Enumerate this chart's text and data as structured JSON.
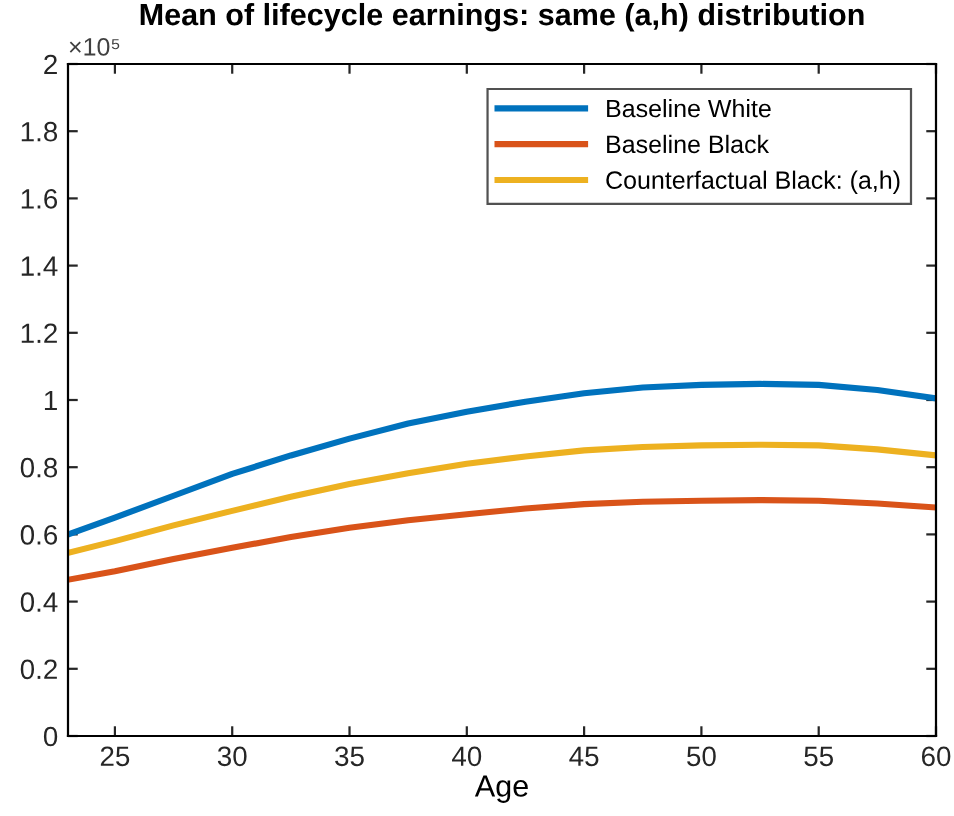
{
  "chart_data": {
    "type": "line",
    "title": "Mean of lifecycle earnings: same (a,h) distribution",
    "xlabel": "Age",
    "annotations": [
      "×10⁵"
    ],
    "x": [
      23,
      25,
      27.5,
      30,
      32.5,
      35,
      37.5,
      40,
      42.5,
      45,
      47.5,
      50,
      52.5,
      55,
      57.5,
      60
    ],
    "series": [
      {
        "name": "Baseline White",
        "color": "#0072bd",
        "values": [
          0.6,
          0.65,
          0.715,
          0.78,
          0.835,
          0.885,
          0.93,
          0.965,
          0.995,
          1.02,
          1.037,
          1.045,
          1.048,
          1.045,
          1.03,
          1.005
        ]
      },
      {
        "name": "Baseline Black",
        "color": "#d95319",
        "values": [
          0.465,
          0.49,
          0.527,
          0.56,
          0.592,
          0.62,
          0.642,
          0.66,
          0.677,
          0.69,
          0.697,
          0.7,
          0.702,
          0.7,
          0.692,
          0.68
        ]
      },
      {
        "name": "Counterfactual Black: (a,h)",
        "color": "#edb120",
        "values": [
          0.545,
          0.58,
          0.627,
          0.67,
          0.712,
          0.75,
          0.782,
          0.81,
          0.832,
          0.85,
          0.86,
          0.865,
          0.867,
          0.865,
          0.853,
          0.835
        ]
      }
    ],
    "xlim": [
      23,
      60
    ],
    "xticks": [
      25,
      30,
      35,
      40,
      45,
      50,
      55,
      60
    ],
    "ylim": [
      0,
      2
    ],
    "yticks": [
      0,
      0.2,
      0.4,
      0.6,
      0.8,
      1,
      1.2,
      1.4,
      1.6,
      1.8,
      2
    ],
    "grid": false,
    "legend": "top right",
    "marker": "none",
    "line_style": "solid"
  }
}
